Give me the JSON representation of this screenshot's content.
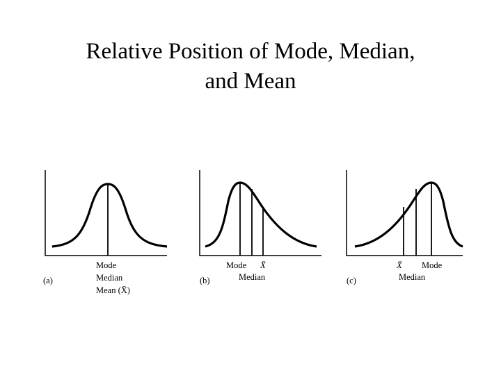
{
  "title": {
    "lines": [
      "Relative Position of Mode, Median,",
      "and Mean"
    ]
  },
  "panels": [
    {
      "tag": "(a)",
      "labels": [
        "Mode",
        "Median",
        "Mean (X̄)"
      ]
    },
    {
      "tag": "(b)",
      "labels": [
        "Mode",
        "X̄",
        "Median"
      ]
    },
    {
      "tag": "(c)",
      "labels": [
        "X̄",
        "Mode",
        "Median"
      ]
    }
  ]
}
